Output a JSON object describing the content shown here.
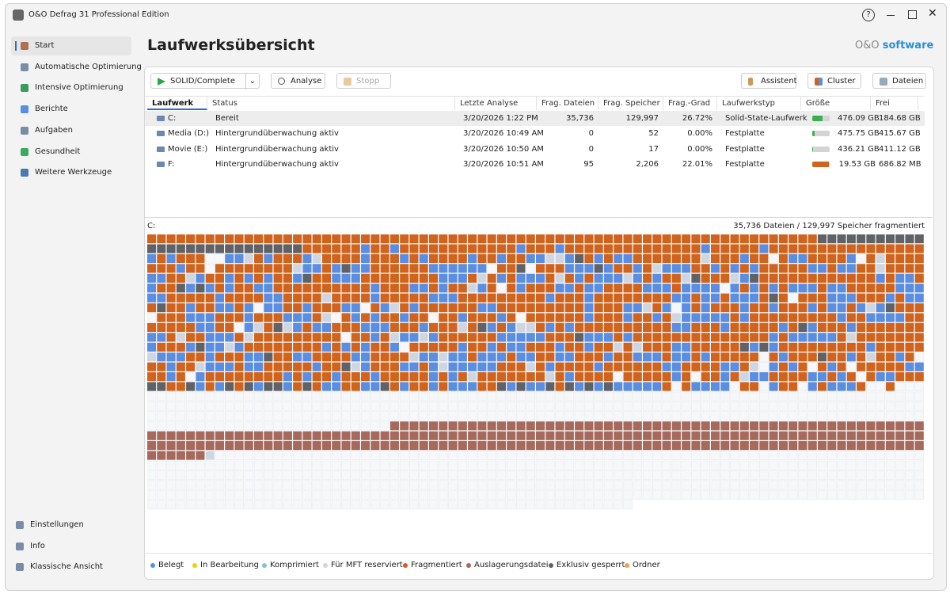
{
  "window": {
    "title": "O&O Defrag 31 Professional Edition"
  },
  "sidebar": {
    "items": [
      {
        "label": "Start"
      },
      {
        "label": "Automatische Optimierung"
      },
      {
        "label": "Intensive Optimierung"
      },
      {
        "label": "Berichte"
      },
      {
        "label": "Aufgaben"
      },
      {
        "label": "Gesundheit"
      },
      {
        "label": "Weitere Werkzeuge"
      }
    ],
    "bottom": [
      {
        "label": "Einstellungen"
      },
      {
        "label": "Info"
      },
      {
        "label": "Klassische Ansicht"
      }
    ]
  },
  "header": {
    "title": "Laufwerksübersicht",
    "logo_brand": "O&O",
    "logo_word": "software"
  },
  "toolbar": {
    "profile": "SOLID/Complete",
    "analyse": "Analyse",
    "stop": "Stopp",
    "assistant": "Assistent",
    "cluster": "Cluster",
    "files": "Dateien"
  },
  "table": {
    "columns": [
      "Laufwerk",
      "Status",
      "Letzte Analyse",
      "Frag. Dateien",
      "Frag. Speicher",
      "Frag.-Grad",
      "Laufwerkstyp",
      "Größe",
      "Frei"
    ],
    "rows": [
      [
        "C:",
        "Bereit",
        "3/20/2026 1:22 PM",
        "35,736",
        "129,997",
        "26.72%",
        "Solid-State-Laufwerk",
        "476.09 GB",
        "184.68 GB"
      ],
      [
        "Media (D:)",
        "Hintergrundüberwachung aktiv",
        "3/20/2026 10:49 AM",
        "0",
        "52",
        "0.00%",
        "Festplatte",
        "475.75 GB",
        "415.67 GB"
      ],
      [
        "Movie (E:)",
        "Hintergrundüberwachung aktiv",
        "3/20/2026 10:50 AM",
        "0",
        "17",
        "0.00%",
        "Festplatte",
        "436.21 GB",
        "411.12 GB"
      ],
      [
        "F:",
        "Hintergrundüberwachung aktiv",
        "3/20/2026 10:51 AM",
        "95",
        "2,206",
        "22.01%",
        "Festplatte",
        "19.53 GB",
        "686.82 MB"
      ]
    ]
  },
  "map": {
    "drive": "C:",
    "summary": "35,736 Dateien / 129,997 Speicher fragmentiert"
  },
  "legend": [
    {
      "label": "Belegt",
      "color": "#5b8ee0"
    },
    {
      "label": "In Bearbeitung",
      "color": "#f0d000"
    },
    {
      "label": "Komprimiert",
      "color": "#7cc4d6"
    },
    {
      "label": "Für MFT reserviert",
      "color": "#cfd6e2"
    },
    {
      "label": "Fragmentiert",
      "color": "#d0641e"
    },
    {
      "label": "Auslagerungsdatei",
      "color": "#a66a5d"
    },
    {
      "label": "Exklusiv gesperrt",
      "color": "#5f6266"
    },
    {
      "label": "Ordner",
      "color": "#f0a050"
    }
  ]
}
